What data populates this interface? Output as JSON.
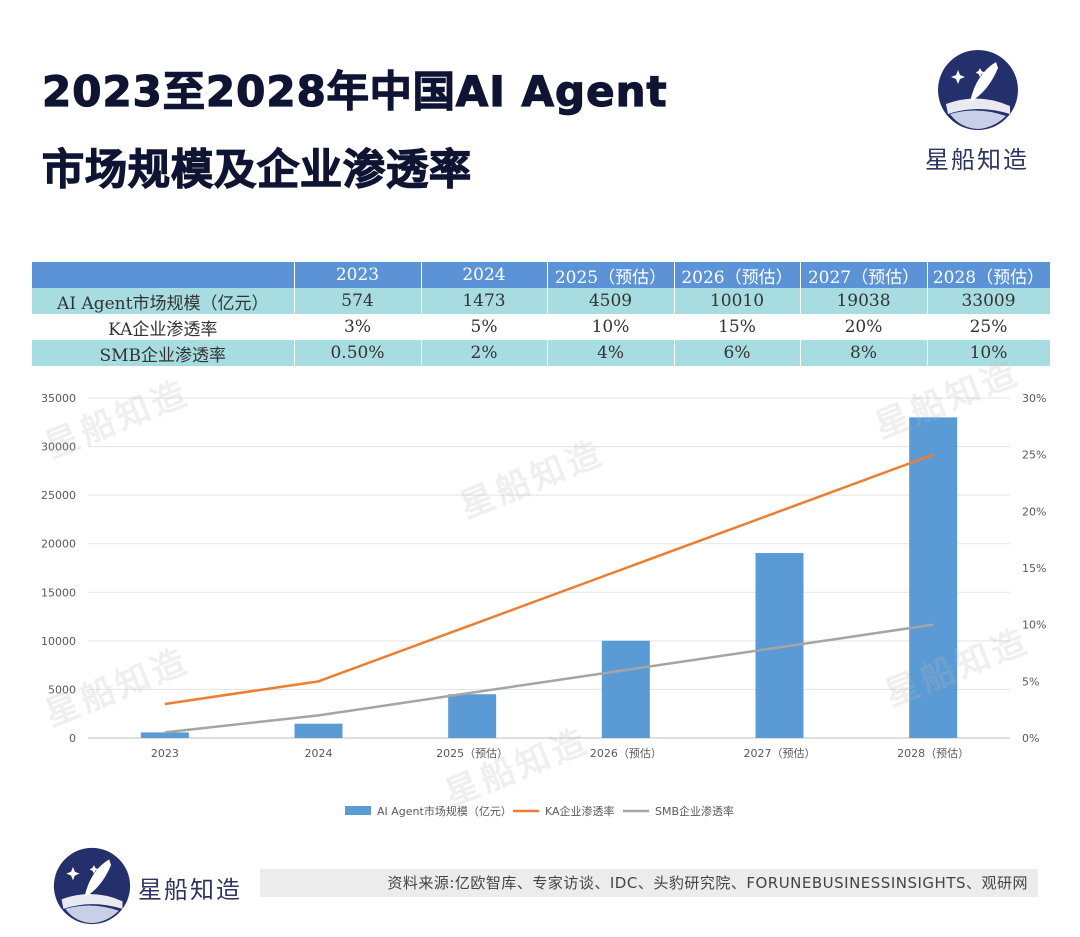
{
  "header": {
    "title_line1": "2023至2028年中国AI Agent",
    "title_line2": "市场规模及企业渗透率",
    "brand": "星船知造"
  },
  "table": {
    "headers": [
      "",
      "2023",
      "2024",
      "2025（预估）",
      "2026（预估）",
      "2027（预估）",
      "2028（预估）"
    ],
    "rows": [
      [
        "AI Agent市场规模（亿元）",
        "574",
        "1473",
        "4509",
        "10010",
        "19038",
        "33009"
      ],
      [
        "KA企业渗透率",
        "3%",
        "5%",
        "10%",
        "15%",
        "20%",
        "25%"
      ],
      [
        "SMB企业渗透率",
        "0.50%",
        "2%",
        "4%",
        "6%",
        "8%",
        "10%"
      ]
    ]
  },
  "chart_data": {
    "type": "bar",
    "categories": [
      "2023",
      "2024",
      "2025（预估）",
      "2026（预估）",
      "2027（预估）",
      "2028（预估）"
    ],
    "series": [
      {
        "name": "AI Agent市场规模（亿元）",
        "type": "bar",
        "axis": "left",
        "color": "#5b9bd5",
        "values": [
          574,
          1473,
          4509,
          10010,
          19038,
          33009
        ]
      },
      {
        "name": "KA企业渗透率",
        "type": "line",
        "axis": "right",
        "color": "#ed7d31",
        "values": [
          3,
          5,
          10,
          15,
          20,
          25
        ]
      },
      {
        "name": "SMB企业渗透率",
        "type": "line",
        "axis": "right",
        "color": "#a5a5a5",
        "values": [
          0.5,
          2,
          4,
          6,
          8,
          10
        ]
      }
    ],
    "ylim": [
      0,
      35000
    ],
    "yticks": [
      "0",
      "5000",
      "10000",
      "15000",
      "20000",
      "25000",
      "30000",
      "35000"
    ],
    "y2lim": [
      0,
      30
    ],
    "y2ticks": [
      "0%",
      "5%",
      "10%",
      "15%",
      "20%",
      "25%",
      "30%"
    ],
    "grid": true,
    "legend": "bottom"
  },
  "footer": {
    "brand": "星船知造",
    "source": "资料来源:亿欧智库、专家访谈、IDC、头豹研究院、FORUNEBUSINESSINSIGHTS、观研网"
  },
  "watermark": "星船知造"
}
